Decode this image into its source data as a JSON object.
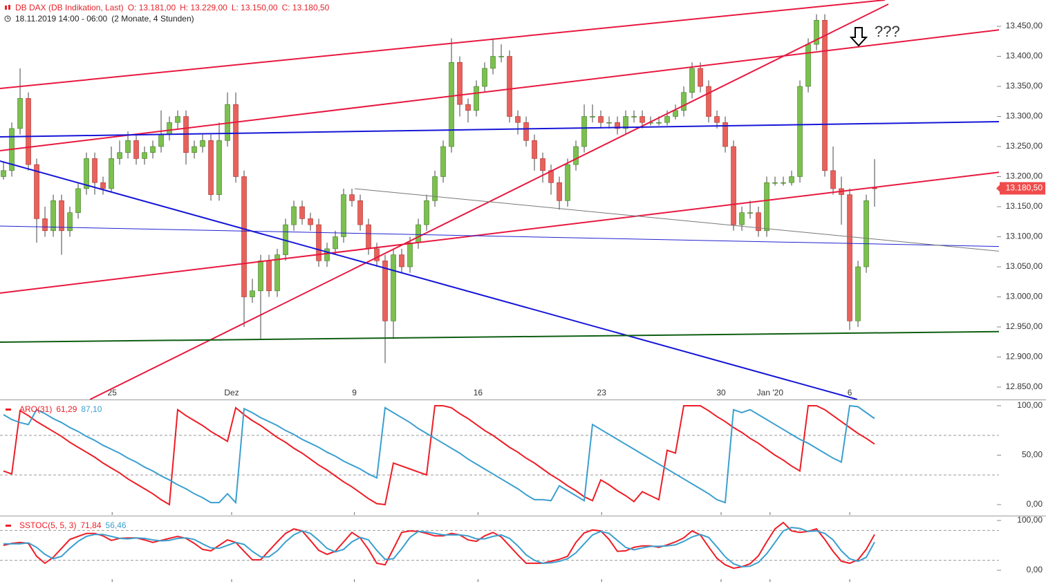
{
  "header": {
    "symbol": "DB DAX (DB Indikation, Last)",
    "open": "O: 13.181,00",
    "high": "H: 13.229,00",
    "low": "L: 13.150,00",
    "close": "C: 13.180,50",
    "period": "18.11.2019 14:00 - 06:00",
    "range": "(2 Monate, 4 Stunden)"
  },
  "chart_data": [
    {
      "type": "candlestick",
      "up_color": "#7cc04f",
      "down_color": "#e8625c",
      "xlim": [
        -0.42,
        119.58
      ],
      "xticks": [
        {
          "value": 13.1,
          "label": "25"
        },
        {
          "value": 27.5,
          "label": "Dez"
        },
        {
          "value": 42.3,
          "label": "9"
        },
        {
          "value": 57.2,
          "label": "16"
        },
        {
          "value": 72.1,
          "label": "23"
        },
        {
          "value": 86.5,
          "label": "30"
        },
        {
          "value": 92.4,
          "label": "Jan '20"
        },
        {
          "value": 102,
          "label": "6"
        }
      ],
      "ylim": [
        12829.3,
        13493.7
      ],
      "yticks": [
        {
          "value": 13450,
          "label": "13.450,00"
        },
        {
          "value": 13400,
          "label": "13.400,00"
        },
        {
          "value": 13350,
          "label": "13.350,00"
        },
        {
          "value": 13300,
          "label": "13.300,00"
        },
        {
          "value": 13250,
          "label": "13.250,00"
        },
        {
          "value": 13200,
          "label": "13.200,00"
        },
        {
          "value": 13150,
          "label": "13.150,00"
        },
        {
          "value": 13100,
          "label": "13.100,00"
        },
        {
          "value": 13050,
          "label": "13.050,00"
        },
        {
          "value": 13000,
          "label": "13.000,00"
        },
        {
          "value": 12950,
          "label": "12.950,00"
        },
        {
          "value": 12900,
          "label": "12.900,00"
        },
        {
          "value": 12850,
          "label": "12.850,00"
        }
      ],
      "last_label": "13.180,50",
      "annotation": "???",
      "ohlc": [
        [
          13200,
          13225,
          13195,
          13210
        ],
        [
          13210,
          13290,
          13200,
          13280
        ],
        [
          13280,
          13380,
          13270,
          13330
        ],
        [
          13330,
          13340,
          13210,
          13220
        ],
        [
          13220,
          13230,
          13090,
          13130
        ],
        [
          13130,
          13150,
          13100,
          13110
        ],
        [
          13110,
          13170,
          13100,
          13160
        ],
        [
          13160,
          13170,
          13070,
          13110
        ],
        [
          13110,
          13150,
          13100,
          13140
        ],
        [
          13140,
          13190,
          13130,
          13180
        ],
        [
          13180,
          13240,
          13170,
          13230
        ],
        [
          13230,
          13240,
          13170,
          13190
        ],
        [
          13190,
          13200,
          13170,
          13180
        ],
        [
          13180,
          13250,
          13175,
          13230
        ],
        [
          13230,
          13260,
          13220,
          13240
        ],
        [
          13240,
          13275,
          13230,
          13260
        ],
        [
          13260,
          13270,
          13220,
          13230
        ],
        [
          13230,
          13250,
          13220,
          13240
        ],
        [
          13240,
          13260,
          13230,
          13250
        ],
        [
          13250,
          13310,
          13240,
          13270
        ],
        [
          13270,
          13300,
          13260,
          13290
        ],
        [
          13290,
          13310,
          13280,
          13300
        ],
        [
          13300,
          13310,
          13220,
          13240
        ],
        [
          13240,
          13260,
          13230,
          13250
        ],
        [
          13250,
          13270,
          13240,
          13260
        ],
        [
          13260,
          13270,
          13160,
          13170
        ],
        [
          13170,
          13290,
          13160,
          13260
        ],
        [
          13260,
          13340,
          13250,
          13320
        ],
        [
          13320,
          13340,
          13190,
          13200
        ],
        [
          13200,
          13210,
          12950,
          13000
        ],
        [
          13000,
          13030,
          12990,
          13010
        ],
        [
          13010,
          13070,
          12930,
          13060
        ],
        [
          13060,
          13070,
          13000,
          13010
        ],
        [
          13010,
          13080,
          13000,
          13070
        ],
        [
          13070,
          13130,
          13060,
          13120
        ],
        [
          13120,
          13160,
          13110,
          13150
        ],
        [
          13150,
          13160,
          13120,
          13130
        ],
        [
          13130,
          13140,
          13110,
          13120
        ],
        [
          13120,
          13130,
          13050,
          13060
        ],
        [
          13060,
          13090,
          13050,
          13080
        ],
        [
          13080,
          13110,
          13070,
          13100
        ],
        [
          13100,
          13180,
          13090,
          13170
        ],
        [
          13170,
          13180,
          13150,
          13160
        ],
        [
          13160,
          13170,
          13110,
          13120
        ],
        [
          13120,
          13130,
          13070,
          13080
        ],
        [
          13080,
          13090,
          13050,
          13060
        ],
        [
          13060,
          13070,
          12890,
          12960
        ],
        [
          12960,
          13080,
          12930,
          13070
        ],
        [
          13070,
          13080,
          13040,
          13050
        ],
        [
          13050,
          13100,
          13040,
          13090
        ],
        [
          13090,
          13130,
          13080,
          13120
        ],
        [
          13120,
          13170,
          13110,
          13160
        ],
        [
          13160,
          13210,
          13150,
          13200
        ],
        [
          13200,
          13260,
          13190,
          13250
        ],
        [
          13250,
          13430,
          13240,
          13390
        ],
        [
          13390,
          13400,
          13300,
          13320
        ],
        [
          13320,
          13330,
          13290,
          13310
        ],
        [
          13310,
          13360,
          13300,
          13350
        ],
        [
          13350,
          13390,
          13340,
          13380
        ],
        [
          13380,
          13430,
          13370,
          13400
        ],
        [
          13400,
          13420,
          13390,
          13400
        ],
        [
          13400,
          13410,
          13290,
          13300
        ],
        [
          13300,
          13310,
          13270,
          13290
        ],
        [
          13290,
          13300,
          13250,
          13260
        ],
        [
          13260,
          13270,
          13210,
          13230
        ],
        [
          13230,
          13240,
          13190,
          13210
        ],
        [
          13210,
          13220,
          13170,
          13190
        ],
        [
          13190,
          13200,
          13145,
          13160
        ],
        [
          13160,
          13230,
          13150,
          13220
        ],
        [
          13220,
          13260,
          13210,
          13250
        ],
        [
          13250,
          13320,
          13240,
          13300
        ],
        [
          13300,
          13320,
          13290,
          13300
        ],
        [
          13300,
          13310,
          13280,
          13290
        ],
        [
          13290,
          13300,
          13280,
          13290
        ],
        [
          13290,
          13300,
          13270,
          13280
        ],
        [
          13280,
          13310,
          13270,
          13300
        ],
        [
          13300,
          13310,
          13290,
          13300
        ],
        [
          13300,
          13310,
          13280,
          13290
        ],
        [
          13290,
          13300,
          13285,
          13290
        ],
        [
          13290,
          13300,
          13285,
          13290
        ],
        [
          13290,
          13310,
          13285,
          13300
        ],
        [
          13300,
          13320,
          13295,
          13310
        ],
        [
          13310,
          13350,
          13300,
          13340
        ],
        [
          13340,
          13390,
          13330,
          13380
        ],
        [
          13380,
          13390,
          13340,
          13350
        ],
        [
          13350,
          13360,
          13290,
          13300
        ],
        [
          13300,
          13310,
          13280,
          13290
        ],
        [
          13290,
          13300,
          13240,
          13250
        ],
        [
          13250,
          13260,
          13110,
          13120
        ],
        [
          13120,
          13150,
          13110,
          13140
        ],
        [
          13140,
          13160,
          13130,
          13140
        ],
        [
          13140,
          13150,
          13100,
          13110
        ],
        [
          13110,
          13200,
          13100,
          13190
        ],
        [
          13190,
          13200,
          13185,
          13190
        ],
        [
          13190,
          13200,
          13185,
          13190
        ],
        [
          13190,
          13210,
          13185,
          13200
        ],
        [
          13200,
          13360,
          13190,
          13350
        ],
        [
          13350,
          13430,
          13340,
          13420
        ],
        [
          13420,
          13470,
          13410,
          13460
        ],
        [
          13460,
          13470,
          13200,
          13210
        ],
        [
          13210,
          13250,
          13170,
          13180
        ],
        [
          13180,
          13200,
          13120,
          13170
        ],
        [
          13170,
          13180,
          12945,
          12960
        ],
        [
          12960,
          13060,
          12950,
          13050
        ],
        [
          13050,
          13170,
          13040,
          13160
        ],
        [
          13181,
          13229,
          13150,
          13180.5
        ]
      ]
    },
    {
      "type": "line",
      "title": "ARO(31)",
      "ylim": [
        -10.49,
        104.9
      ],
      "yticks": [
        {
          "value": 100,
          "label": "100,00"
        },
        {
          "value": 50,
          "label": "50,00"
        },
        {
          "value": 0,
          "label": "0,00"
        }
      ],
      "levels": [
        70,
        30
      ],
      "series": [
        {
          "color": "#ee1c25",
          "last_label": "61,29",
          "values": [
            34,
            31,
            95,
            90,
            84,
            79,
            74,
            69,
            63,
            58,
            53,
            48,
            42,
            37,
            32,
            26,
            21,
            16,
            11,
            5,
            0,
            96,
            90,
            85,
            80,
            74,
            69,
            64,
            98,
            91,
            85,
            80,
            74,
            68,
            63,
            57,
            52,
            46,
            40,
            35,
            29,
            23,
            18,
            12,
            6,
            1,
            0,
            42,
            39,
            36,
            33,
            30,
            100,
            100,
            98,
            92,
            87,
            81,
            75,
            70,
            64,
            58,
            53,
            47,
            42,
            36,
            30,
            25,
            19,
            14,
            8,
            4,
            25,
            20,
            14,
            9,
            3,
            13,
            9,
            5,
            55,
            52,
            100,
            100,
            100,
            95,
            89,
            84,
            78,
            73,
            67,
            62,
            56,
            50,
            45,
            39,
            34,
            100,
            100,
            96,
            90,
            84,
            78,
            72,
            67,
            61.29
          ]
        },
        {
          "color": "#3a9fcf",
          "last_label": "87,10",
          "values": [
            91,
            86,
            83,
            81,
            96,
            92,
            87,
            83,
            78,
            74,
            69,
            65,
            60,
            56,
            52,
            47,
            43,
            38,
            34,
            29,
            25,
            20,
            16,
            11,
            7,
            2,
            2,
            11,
            2,
            97,
            93,
            88,
            84,
            80,
            75,
            71,
            66,
            62,
            58,
            53,
            49,
            44,
            40,
            36,
            31,
            27,
            98,
            93,
            88,
            83,
            77,
            72,
            67,
            62,
            57,
            52,
            46,
            41,
            36,
            31,
            26,
            21,
            16,
            10,
            5,
            5,
            4,
            19,
            14,
            9,
            4,
            81,
            76,
            71,
            66,
            61,
            56,
            51,
            46,
            41,
            36,
            31,
            26,
            21,
            16,
            11,
            5,
            2,
            96,
            93,
            96,
            91,
            86,
            81,
            76,
            71,
            66,
            62,
            57,
            52,
            47,
            43,
            100,
            99,
            93,
            87.1
          ]
        }
      ]
    },
    {
      "type": "line",
      "title": "SSTOC(5, 5, 3)",
      "ylim": [
        -23.61,
        106.94
      ],
      "yticks": [
        {
          "value": 100,
          "label": "100,00"
        },
        {
          "value": 0,
          "label": "0,00"
        }
      ],
      "levels": [
        80,
        20
      ],
      "series": [
        {
          "color": "#ee1c25",
          "last_label": "71,84",
          "values": [
            50,
            54,
            56,
            54,
            28,
            14,
            26,
            44,
            62,
            68,
            74,
            74,
            69,
            60,
            64,
            65,
            65,
            61,
            56,
            60,
            64,
            68,
            64,
            54,
            42,
            39,
            50,
            61,
            56,
            38,
            21,
            21,
            39,
            57,
            74,
            83,
            79,
            60,
            40,
            32,
            38,
            57,
            76,
            65,
            42,
            14,
            11,
            43,
            76,
            79,
            78,
            74,
            69,
            69,
            74,
            71,
            61,
            58,
            69,
            76,
            67,
            49,
            31,
            14,
            14,
            14,
            18,
            22,
            28,
            56,
            75,
            81,
            79,
            62,
            38,
            39,
            46,
            49,
            49,
            46,
            51,
            57,
            65,
            79,
            71,
            47,
            24,
            11,
            4,
            7,
            13,
            29,
            57,
            83,
            96,
            79,
            76,
            78,
            83,
            62,
            38,
            18,
            14,
            21,
            42,
            71.84
          ]
        },
        {
          "color": "#3a9fcf",
          "last_label": "56,46",
          "values": [
            53,
            53,
            53,
            55,
            46,
            32,
            23,
            28,
            44,
            58,
            68,
            72,
            72,
            68,
            64,
            63,
            65,
            64,
            61,
            59,
            60,
            64,
            65,
            62,
            53,
            45,
            44,
            50,
            56,
            52,
            38,
            27,
            27,
            39,
            57,
            71,
            79,
            74,
            60,
            44,
            37,
            42,
            57,
            66,
            61,
            40,
            22,
            23,
            43,
            66,
            78,
            77,
            74,
            71,
            71,
            71,
            69,
            63,
            63,
            68,
            71,
            64,
            49,
            31,
            20,
            14,
            15,
            18,
            23,
            35,
            53,
            71,
            78,
            74,
            60,
            46,
            41,
            45,
            48,
            48,
            49,
            51,
            58,
            67,
            72,
            66,
            47,
            27,
            13,
            7,
            8,
            16,
            33,
            56,
            79,
            86,
            84,
            78,
            79,
            74,
            61,
            39,
            23,
            18,
            26,
            56.46
          ]
        }
      ]
    }
  ]
}
